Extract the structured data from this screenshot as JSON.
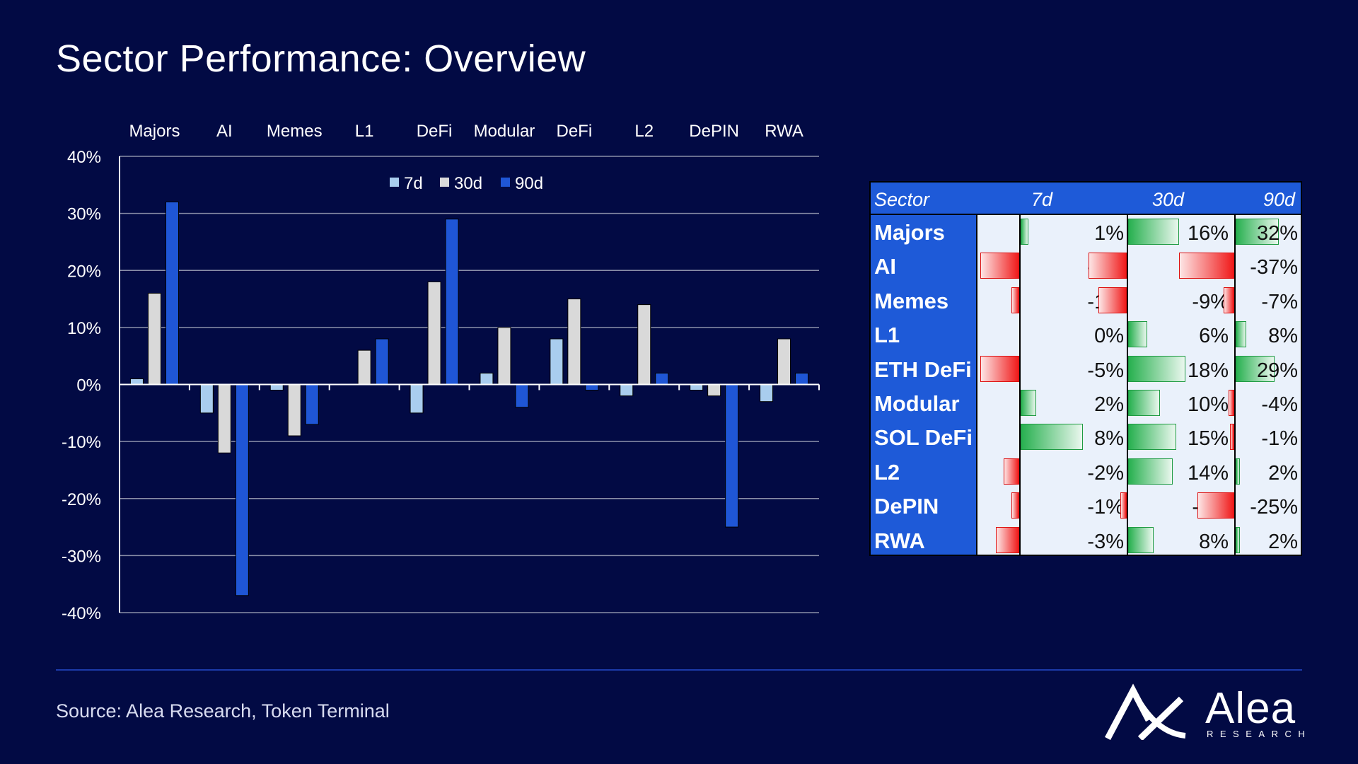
{
  "title": "Sector Performance: Overview",
  "source": "Source: Alea Research, Token Terminal",
  "logo": {
    "name": "Alea",
    "sub": "RESEARCH"
  },
  "colors": {
    "background": "#020a44",
    "d7": "#a9cdee",
    "d30": "#d9d9d9",
    "d90": "#1f56d6",
    "table_header": "#1e5ad8",
    "positive": "#27b04f",
    "negative": "#f01a1a"
  },
  "chart_data": {
    "type": "bar",
    "title": "",
    "categories": [
      "Majors",
      "AI",
      "Memes",
      "L1",
      "DeFi",
      "Modular",
      "DeFi",
      "L2",
      "DePIN",
      "RWA"
    ],
    "series": [
      {
        "name": "7d",
        "values": [
          1,
          -5,
          -1,
          0,
          -5,
          2,
          8,
          -2,
          -1,
          -3
        ]
      },
      {
        "name": "30d",
        "values": [
          16,
          -12,
          -9,
          6,
          18,
          10,
          15,
          14,
          -2,
          8
        ]
      },
      {
        "name": "90d",
        "values": [
          32,
          -37,
          -7,
          8,
          29,
          -4,
          -1,
          2,
          -25,
          2
        ]
      }
    ],
    "ylim": [
      -40,
      40
    ],
    "yticks": [
      "40%",
      "30%",
      "20%",
      "10%",
      "0%",
      "-10%",
      "-20%",
      "-30%",
      "-40%"
    ],
    "xlabel": "",
    "ylabel": "",
    "grid": true,
    "legend_position": "top-center",
    "category_labels_position": "top"
  },
  "table": {
    "headers": [
      "Sector",
      "7d",
      "30d",
      "90d"
    ],
    "rows": [
      {
        "sector": "Majors",
        "d7": 1,
        "d30": 16,
        "d90": 32
      },
      {
        "sector": "AI",
        "d7": -5,
        "d30": -12,
        "d90": -37
      },
      {
        "sector": "Memes",
        "d7": -1,
        "d30": -9,
        "d90": -7
      },
      {
        "sector": "L1",
        "d7": 0,
        "d30": 6,
        "d90": 8
      },
      {
        "sector": "ETH DeFi",
        "d7": -5,
        "d30": 18,
        "d90": 29
      },
      {
        "sector": "Modular",
        "d7": 2,
        "d30": 10,
        "d90": -4
      },
      {
        "sector": "SOL DeFi",
        "d7": 8,
        "d30": 15,
        "d90": -1
      },
      {
        "sector": "L2",
        "d7": -2,
        "d30": 14,
        "d90": 2
      },
      {
        "sector": "DePIN",
        "d7": -1,
        "d30": -2,
        "d90": -25
      },
      {
        "sector": "RWA",
        "d7": -3,
        "d30": 8,
        "d90": 2
      }
    ]
  }
}
